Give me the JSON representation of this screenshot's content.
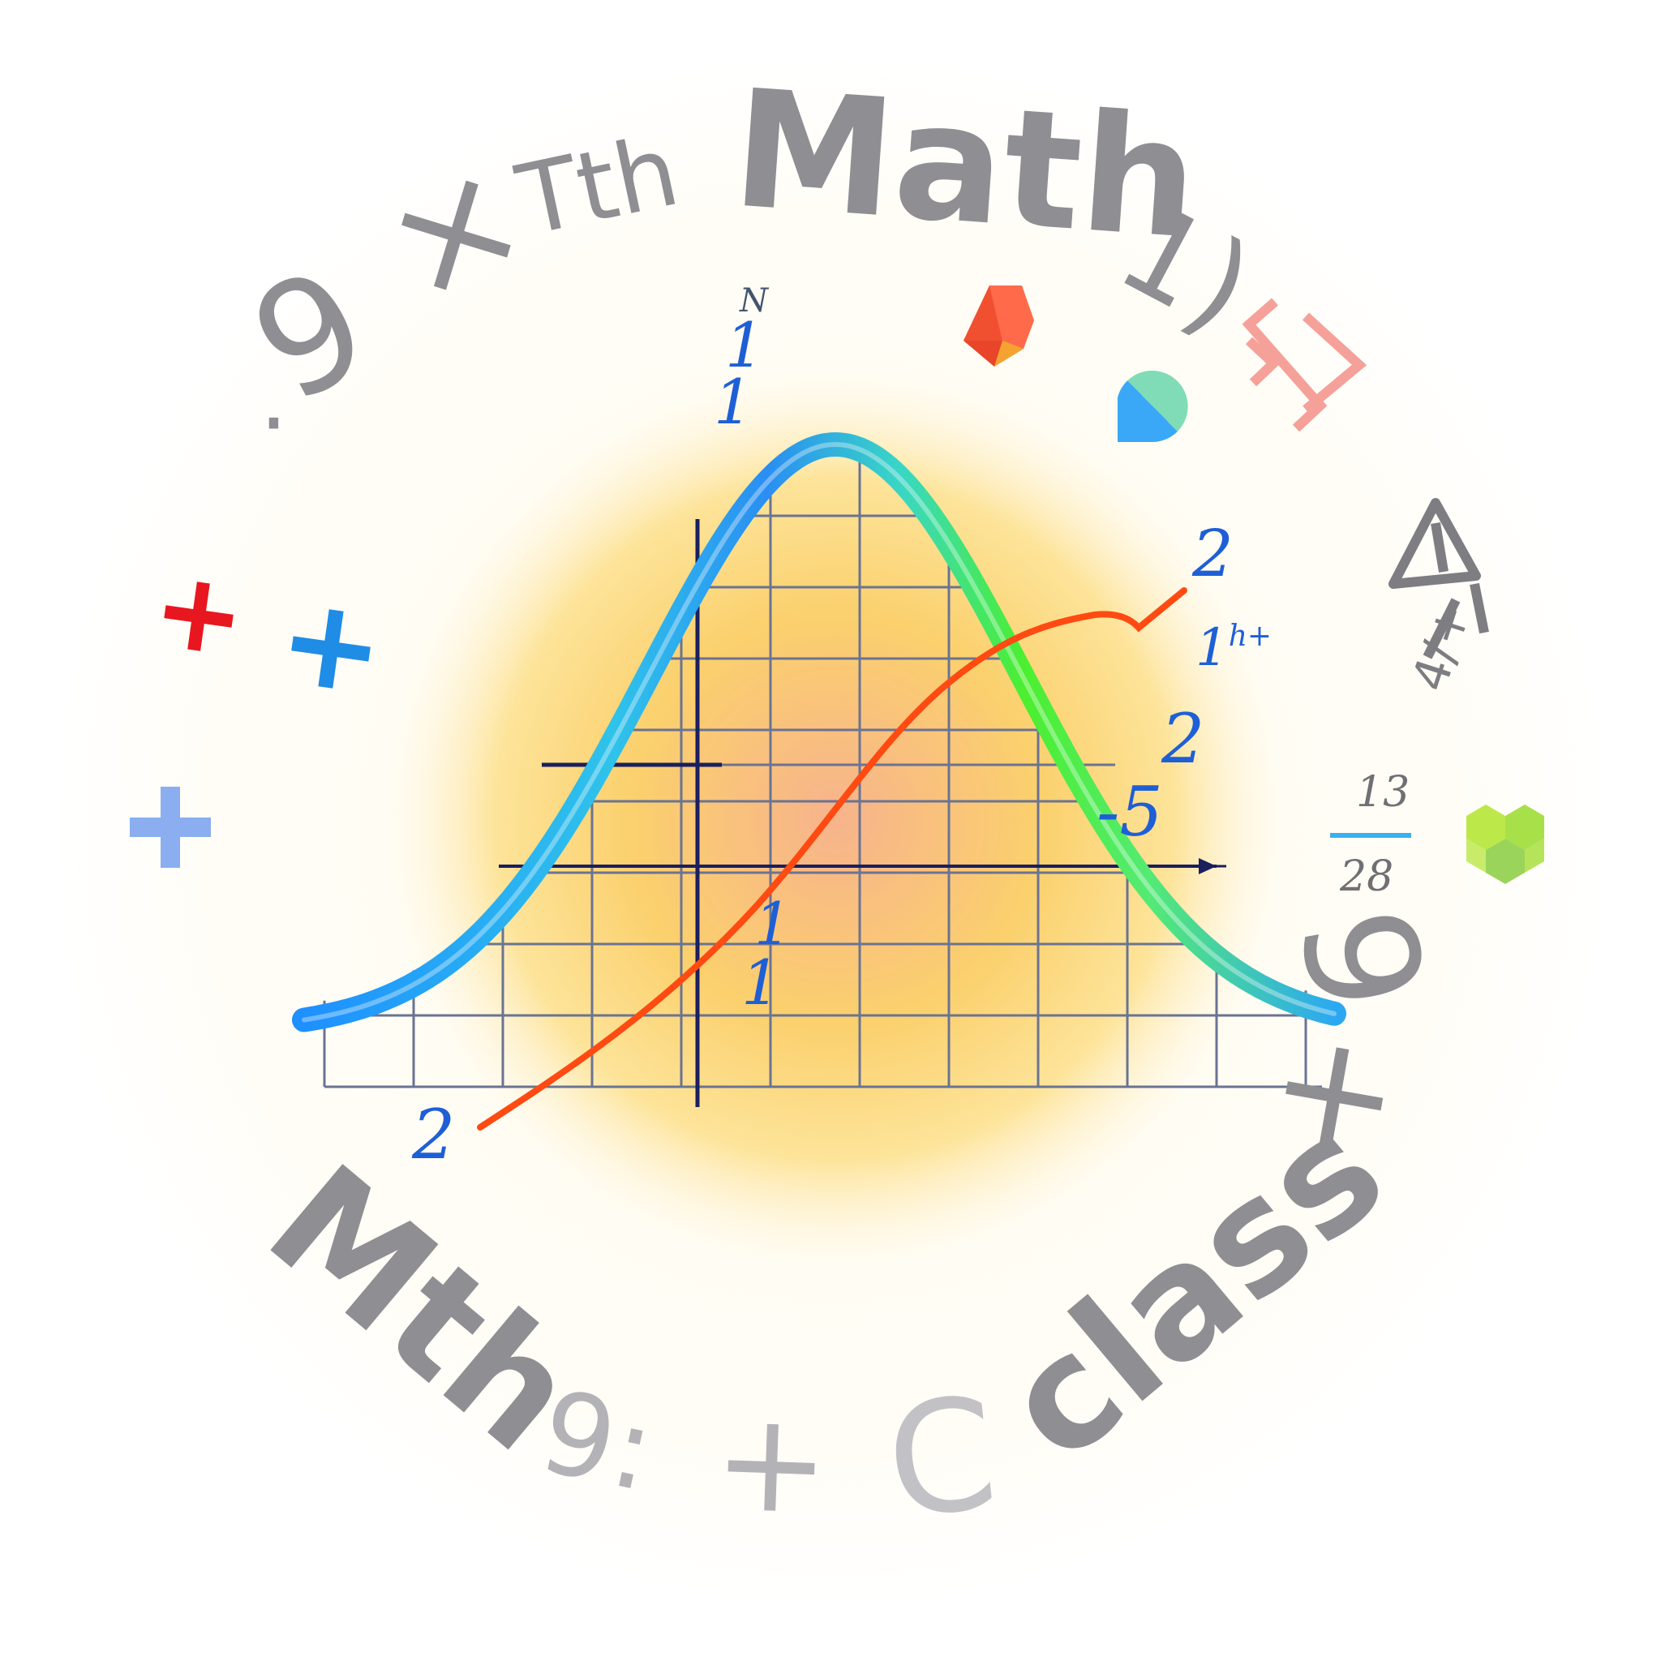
{
  "ring": {
    "top_word": "Math",
    "top_prefix": "Tth",
    "top_suffix": "1)",
    "top_left_nine": "9",
    "top_left_times": "×",
    "top_left_dot": "·",
    "bottom_words": {
      "mth": "Mth",
      "nine_colon": "9:",
      "plus": "+",
      "c": "C",
      "class": "class",
      "right_sign": "+",
      "right_nine": "6"
    },
    "right_glyphs": {
      "bracket_z": "Z",
      "triangle_label": "4/+"
    }
  },
  "fraction": {
    "numerator": "13",
    "denominator": "28"
  },
  "plot_labels": {
    "top_n": "N",
    "top_one_a": "1",
    "top_one_b": "1",
    "right_two_top": "2",
    "right_1h": "1",
    "right_1h_sup": "h+",
    "right_two_mid": "2",
    "right_minus_five": "-5",
    "center_one_a": "1",
    "center_one_b": "1",
    "bottom_left_two": "2"
  },
  "colors": {
    "bell_left": "#1e90ff",
    "bell_mid": "#38c8e8",
    "bell_right": "#4cef2f",
    "s_curve": "#ff4a12",
    "axis": "#1a1f5e",
    "grid": "#6a7393",
    "glow_center": "#f7b98a",
    "glow_mid": "#fcd770",
    "plus_red": "#e8161f",
    "plus_blue": "#1f8ce6",
    "plus_lightblue": "#8aaeef",
    "gem_red": "#f04a28",
    "drop_teal": "#4fc9c0",
    "bracket_pink": "#f6a09a",
    "hex_green": "#a4e34a"
  },
  "icons": [
    "plus-red-icon",
    "plus-blue-icon",
    "plus-lightblue-icon",
    "gem-icon",
    "drop-icon",
    "bracket-icon",
    "triangle-icon",
    "hexagon-cluster-icon"
  ]
}
